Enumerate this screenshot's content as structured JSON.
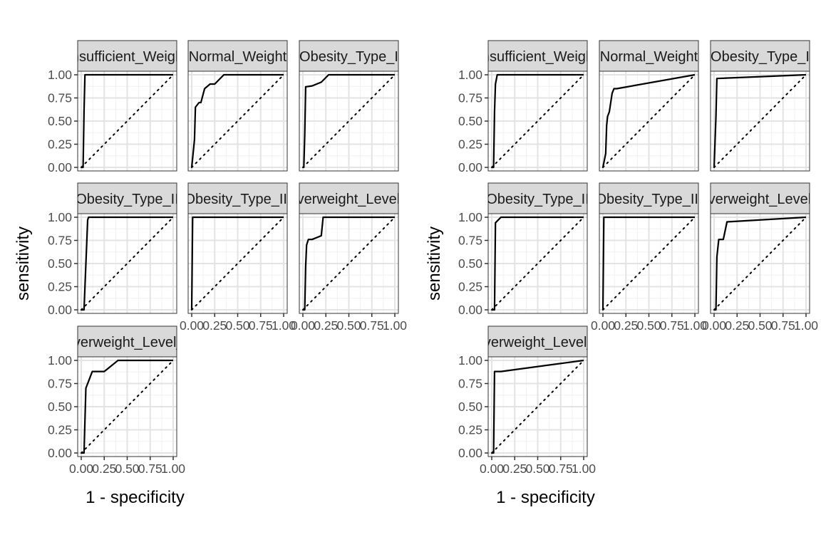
{
  "chart_data": [
    {
      "type": "line",
      "xlabel": "1 - specificity",
      "ylabel": "sensitivity",
      "xlim": [
        0,
        1
      ],
      "ylim": [
        0,
        1
      ],
      "grid": true,
      "x_ticks": [
        "0.00",
        "0.25",
        "0.50",
        "0.75",
        "1.00"
      ],
      "y_ticks": [
        "0.00",
        "0.25",
        "0.50",
        "0.75",
        "1.00"
      ],
      "reference_line": "diagonal-dotted",
      "panels": [
        {
          "strip": "Insufficient_Weight",
          "x": [
            0,
            0.02,
            0.03,
            0.04,
            1
          ],
          "y": [
            0,
            0,
            0.6,
            1,
            1
          ]
        },
        {
          "strip": "Normal_Weight",
          "x": [
            0,
            0.01,
            0.03,
            0.04,
            0.08,
            0.1,
            0.14,
            0.2,
            0.25,
            0.35,
            1
          ],
          "y": [
            0,
            0.1,
            0.3,
            0.65,
            0.7,
            0.7,
            0.85,
            0.9,
            0.9,
            1,
            1
          ]
        },
        {
          "strip": "Obesity_Type_I",
          "x": [
            0,
            0.01,
            0.02,
            0.03,
            0.1,
            0.2,
            0.28,
            1
          ],
          "y": [
            0,
            0,
            0.35,
            0.87,
            0.88,
            0.92,
            1,
            1
          ]
        },
        {
          "strip": "Obesity_Type_II",
          "x": [
            0,
            0.03,
            0.07,
            0.08,
            1
          ],
          "y": [
            0,
            0,
            0.97,
            1,
            1
          ]
        },
        {
          "strip": "Obesity_Type_III",
          "x": [
            0,
            0,
            0.01,
            1
          ],
          "y": [
            0,
            0,
            1,
            1
          ]
        },
        {
          "strip": "Overweight_Level_I",
          "x": [
            0,
            0.02,
            0.03,
            0.04,
            0.06,
            0.1,
            0.2,
            0.22,
            1
          ],
          "y": [
            0,
            0,
            0.47,
            0.7,
            0.76,
            0.76,
            0.8,
            1,
            1
          ]
        },
        {
          "strip": "Overweight_Level_II",
          "x": [
            0,
            0.03,
            0.05,
            0.12,
            0.18,
            0.25,
            0.4,
            1
          ],
          "y": [
            0,
            0,
            0.7,
            0.88,
            0.88,
            0.88,
            1,
            1
          ]
        }
      ]
    },
    {
      "type": "line",
      "xlabel": "1 - specificity",
      "ylabel": "sensitivity",
      "xlim": [
        0,
        1
      ],
      "ylim": [
        0,
        1
      ],
      "grid": true,
      "x_ticks": [
        "0.00",
        "0.25",
        "0.50",
        "0.75",
        "1.00"
      ],
      "y_ticks": [
        "0.00",
        "0.25",
        "0.50",
        "0.75",
        "1.00"
      ],
      "reference_line": "diagonal-dotted",
      "panels": [
        {
          "strip": "Insufficient_Weight",
          "x": [
            0,
            0.02,
            0.03,
            0.04,
            0.06,
            1
          ],
          "y": [
            0,
            0,
            0.6,
            0.9,
            1,
            1
          ]
        },
        {
          "strip": "Normal_Weight",
          "x": [
            0,
            0.03,
            0.04,
            0.05,
            0.07,
            0.1,
            0.12,
            0.15,
            1
          ],
          "y": [
            0,
            0.15,
            0.45,
            0.55,
            0.6,
            0.8,
            0.85,
            0.85,
            1
          ]
        },
        {
          "strip": "Obesity_Type_I",
          "x": [
            0,
            0.02,
            0.03,
            1
          ],
          "y": [
            0,
            0.55,
            0.96,
            1
          ]
        },
        {
          "strip": "Obesity_Type_II",
          "x": [
            0,
            0.03,
            0.04,
            0.1,
            1
          ],
          "y": [
            0,
            0,
            0.94,
            1,
            1
          ]
        },
        {
          "strip": "Obesity_Type_III",
          "x": [
            0,
            0,
            0.01,
            1
          ],
          "y": [
            0,
            0,
            1,
            1
          ]
        },
        {
          "strip": "Overweight_Level_I",
          "x": [
            0,
            0.02,
            0.03,
            0.05,
            0.1,
            0.14,
            1
          ],
          "y": [
            0,
            0,
            0.57,
            0.76,
            0.76,
            0.95,
            1
          ]
        },
        {
          "strip": "Overweight_Level_II",
          "x": [
            0,
            0.02,
            0.03,
            0.1,
            1
          ],
          "y": [
            0,
            0,
            0.88,
            0.88,
            1
          ]
        }
      ]
    }
  ]
}
